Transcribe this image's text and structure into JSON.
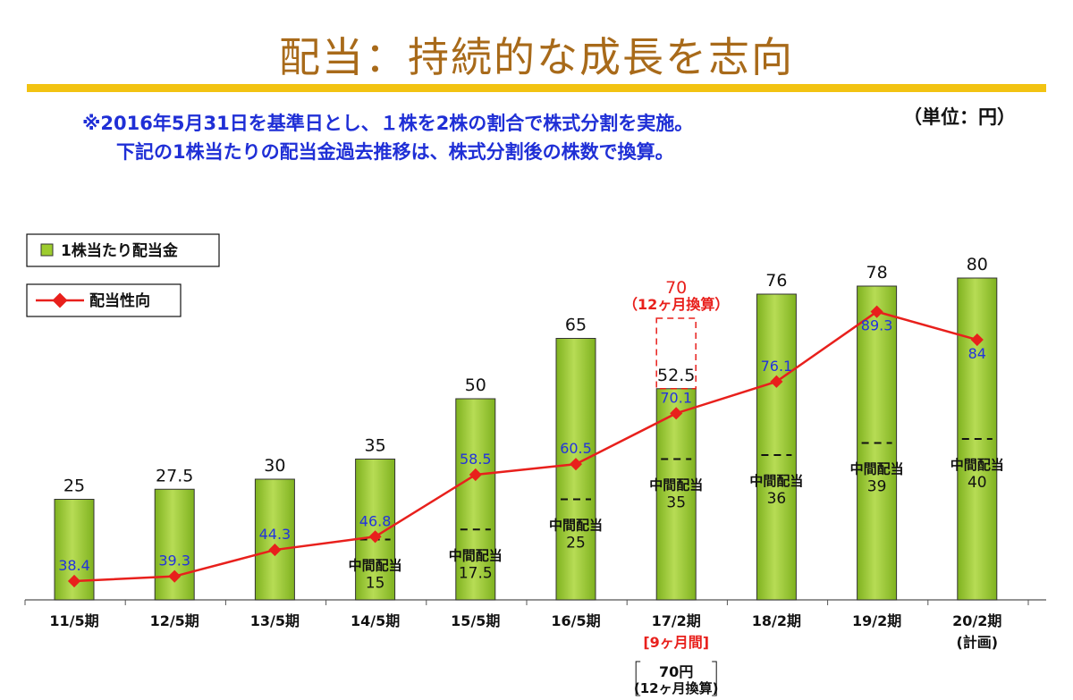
{
  "page": {
    "title": "配当：持続的な成長を志向",
    "note_line1": "※2016年5月31日を基準日とし、１株を2株の割合で株式分割を実施。",
    "note_line2": "下記の1株当たりの配当金過去推移は、株式分割後の株数で換算。",
    "unit": "（単位：円）"
  },
  "colors": {
    "title": "#a86a1a",
    "title_bar": "#f2c312",
    "note": "#1f2fd6",
    "bar_fill": "#9dcc2e",
    "line": "#e8201c",
    "line_label": "#2233dd"
  },
  "chart_data": {
    "type": "bar",
    "categories": [
      "11/5期",
      "12/5期",
      "13/5期",
      "14/5期",
      "15/5期",
      "16/5期",
      "17/2期",
      "18/2期",
      "19/2期",
      "20/2期"
    ],
    "category_sublabels": [
      "",
      "",
      "",
      "",
      "",
      "",
      "[9ヶ月間]",
      "",
      "",
      "(計画)"
    ],
    "series": [
      {
        "name": "1株当たり配当金",
        "type": "bar",
        "values": [
          25,
          27.5,
          30,
          35,
          50,
          65,
          52.5,
          76,
          78,
          80
        ],
        "interim_label": "中間配当",
        "interim_values": [
          null,
          null,
          null,
          15,
          17.5,
          25,
          35,
          36,
          39,
          40
        ]
      },
      {
        "name": "配当性向",
        "type": "line",
        "values": [
          38.4,
          39.3,
          44.3,
          46.8,
          58.5,
          60.5,
          70.1,
          76.1,
          89.3,
          84
        ]
      }
    ],
    "annotation_17_2": {
      "value": "70",
      "note": "（12ヶ月換算）",
      "bottom_value": "70円",
      "bottom_note": "(12ヶ月換算)"
    },
    "legend_position": "top-left"
  }
}
